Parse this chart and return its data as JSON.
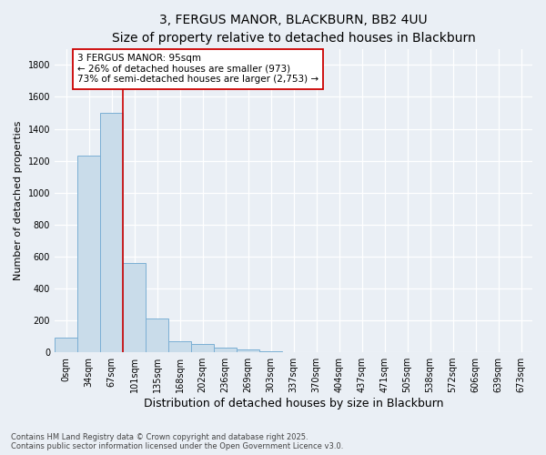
{
  "title": "3, FERGUS MANOR, BLACKBURN, BB2 4UU",
  "subtitle": "Size of property relative to detached houses in Blackburn",
  "xlabel": "Distribution of detached houses by size in Blackburn",
  "ylabel": "Number of detached properties",
  "bar_labels": [
    "0sqm",
    "34sqm",
    "67sqm",
    "101sqm",
    "135sqm",
    "168sqm",
    "202sqm",
    "236sqm",
    "269sqm",
    "303sqm",
    "337sqm",
    "370sqm",
    "404sqm",
    "437sqm",
    "471sqm",
    "505sqm",
    "538sqm",
    "572sqm",
    "606sqm",
    "639sqm",
    "673sqm"
  ],
  "bar_values": [
    90,
    1230,
    1500,
    560,
    210,
    70,
    50,
    30,
    20,
    5,
    0,
    0,
    0,
    0,
    0,
    0,
    0,
    0,
    0,
    0,
    0
  ],
  "bar_color": "#c9dcea",
  "bar_edgecolor": "#7bafd4",
  "property_line_x": 2.5,
  "property_line_color": "#cc0000",
  "annotation_text": "3 FERGUS MANOR: 95sqm\n← 26% of detached houses are smaller (973)\n73% of semi-detached houses are larger (2,753) →",
  "annotation_box_facecolor": "#ffffff",
  "annotation_box_edgecolor": "#cc0000",
  "ylim": [
    0,
    1900
  ],
  "yticks": [
    0,
    200,
    400,
    600,
    800,
    1000,
    1200,
    1400,
    1600,
    1800
  ],
  "footer_text": "Contains HM Land Registry data © Crown copyright and database right 2025.\nContains public sector information licensed under the Open Government Licence v3.0.",
  "bg_color": "#eaeff5",
  "grid_color": "#ffffff",
  "title_fontsize": 10,
  "subtitle_fontsize": 9,
  "tick_fontsize": 7,
  "ylabel_fontsize": 8,
  "xlabel_fontsize": 9,
  "annotation_fontsize": 7.5,
  "footer_fontsize": 6
}
